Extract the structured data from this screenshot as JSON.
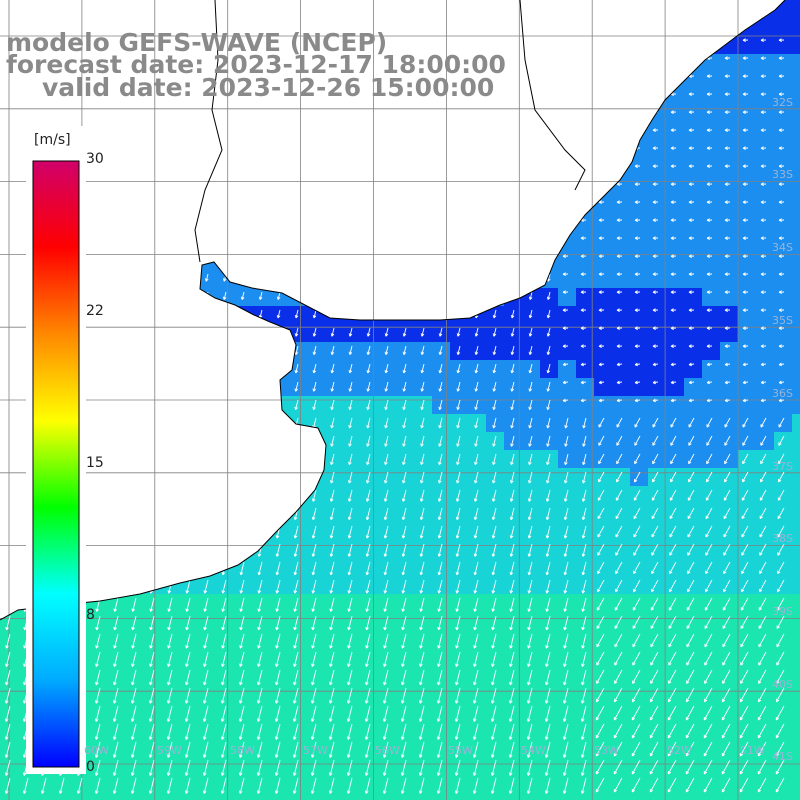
{
  "title": {
    "line1": "modelo GEFS-WAVE (NCEP)",
    "line2": "forecast date: 2023-12-17 18:00:00",
    "line3": "valid date: 2023-12-26 15:00:00"
  },
  "colorbar": {
    "unit": "[m/s]",
    "ticks": [
      "30",
      "22",
      "15",
      "8",
      "0"
    ],
    "range": [
      0,
      30
    ],
    "colors": [
      "#0000ff",
      "#00aaff",
      "#00ffff",
      "#00ff00",
      "#ffff00",
      "#ff8800",
      "#ff0000",
      "#d0006a"
    ]
  },
  "map": {
    "lat_labels": [
      "32S",
      "33S",
      "34S",
      "35S",
      "36S",
      "37S",
      "38S",
      "39S",
      "40S",
      "41S"
    ],
    "lon_labels": [
      "60W",
      "59W",
      "58W",
      "57W",
      "56W",
      "55W",
      "54W",
      "53W",
      "52W",
      "51W"
    ],
    "ocean_colors": {
      "low": "#0a2fe8",
      "mid": "#1c8ef0",
      "high": "#19d4d6",
      "peak": "#1be6b0"
    },
    "land_color": "#ffffff",
    "grid_color": "#808080",
    "arrow_color": "#ffffff",
    "coastline_color": "#000000"
  }
}
